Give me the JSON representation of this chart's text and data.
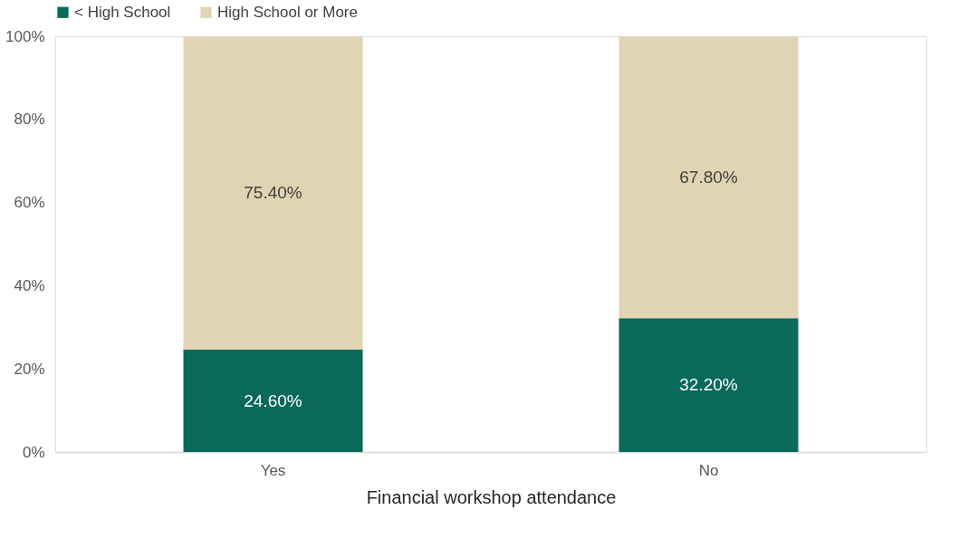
{
  "chart_data": {
    "type": "bar",
    "stacked": true,
    "xlabel": "Financial workshop attendance",
    "categories": [
      "Yes",
      "No"
    ],
    "series": [
      {
        "name": "< High School",
        "color": "#076a5a",
        "values": [
          24.6,
          32.2
        ],
        "value_labels": [
          "24.60%",
          "32.20%"
        ]
      },
      {
        "name": "High School or More",
        "color": "#e0d4b2",
        "values": [
          75.4,
          67.8
        ],
        "value_labels": [
          "75.40%",
          "67.80%"
        ]
      }
    ],
    "ylim": [
      0,
      100
    ],
    "yticks": [
      {
        "value": 0,
        "label": "0%"
      },
      {
        "value": 20,
        "label": "20%"
      },
      {
        "value": 40,
        "label": "40%"
      },
      {
        "value": 60,
        "label": "60%"
      },
      {
        "value": 80,
        "label": "80%"
      },
      {
        "value": 100,
        "label": "100%"
      }
    ],
    "grid": false,
    "legend": "top"
  }
}
